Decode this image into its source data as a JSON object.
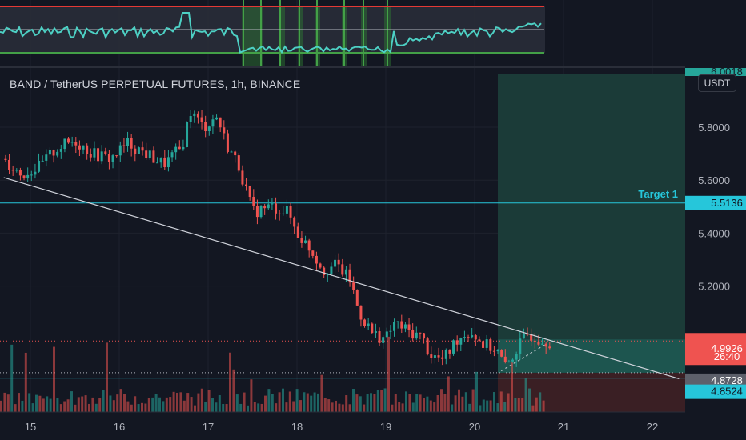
{
  "header": {
    "title": "BAND / TetherUS PERPETUAL FUTURES, 1h, BINANCE"
  },
  "currency": "USDT",
  "target": {
    "label": "Target 1"
  },
  "price_tags": {
    "top_partial": "6.0018",
    "target": "5.5136",
    "last": "4.9926",
    "countdown": "26:40",
    "entry": "4.8728",
    "stop": "4.8524"
  },
  "colors": {
    "background": "#131722",
    "up": "#26a69a",
    "down": "#ef5350",
    "profit_zone": "#1b3b38",
    "loss_zone": "#3a1f24",
    "indicator": "#4dd0c4",
    "band_top": "#e53935",
    "band_bottom": "#43a047",
    "target_line": "#26c6da"
  },
  "chart_data": {
    "type": "candlestick",
    "symbol": "BANDUSDT",
    "timeframe": "1h",
    "x_ticks": [
      "15",
      "16",
      "17",
      "18",
      "19",
      "20",
      "21",
      "22"
    ],
    "y_ticks": [
      "5.8000",
      "5.6000",
      "5.4000",
      "5.2000"
    ],
    "ylim": [
      4.8,
      6.0
    ],
    "indicator_ticks": [
      "40"
    ],
    "last_price": 4.9926,
    "target_price": 5.5136,
    "entry_price": 4.8728,
    "stop_price": 4.8524,
    "trendline": {
      "start": [
        14.7,
        5.61
      ],
      "end": [
        22.3,
        4.85
      ]
    },
    "path": [
      [
        14.7,
        5.68
      ],
      [
        14.9,
        5.62
      ],
      [
        15.1,
        5.65
      ],
      [
        15.3,
        5.72
      ],
      [
        15.5,
        5.75
      ],
      [
        15.7,
        5.7
      ],
      [
        15.9,
        5.68
      ],
      [
        16.1,
        5.74
      ],
      [
        16.3,
        5.7
      ],
      [
        16.5,
        5.66
      ],
      [
        16.7,
        5.72
      ],
      [
        16.8,
        5.86
      ],
      [
        16.95,
        5.8
      ],
      [
        17.1,
        5.84
      ],
      [
        17.2,
        5.74
      ],
      [
        17.35,
        5.65
      ],
      [
        17.5,
        5.48
      ],
      [
        17.7,
        5.5
      ],
      [
        17.9,
        5.48
      ],
      [
        18.0,
        5.4
      ],
      [
        18.15,
        5.34
      ],
      [
        18.3,
        5.26
      ],
      [
        18.45,
        5.28
      ],
      [
        18.6,
        5.22
      ],
      [
        18.7,
        5.1
      ],
      [
        18.85,
        5.02
      ],
      [
        19.0,
        5.0
      ],
      [
        19.1,
        5.06
      ],
      [
        19.25,
        5.03
      ],
      [
        19.4,
        5.01
      ],
      [
        19.5,
        4.94
      ],
      [
        19.65,
        4.92
      ],
      [
        19.8,
        5.0
      ],
      [
        19.95,
        5.03
      ],
      [
        20.1,
        4.98
      ],
      [
        20.25,
        4.96
      ],
      [
        20.35,
        4.89
      ],
      [
        20.45,
        4.95
      ],
      [
        20.6,
        5.02
      ],
      [
        20.75,
        5.0
      ],
      [
        20.85,
        4.99
      ]
    ]
  }
}
